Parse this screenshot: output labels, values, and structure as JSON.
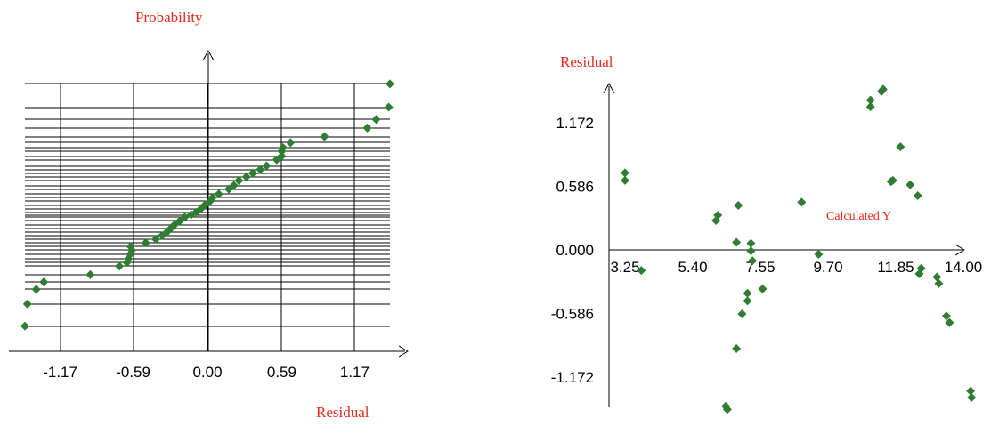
{
  "chart_data": [
    {
      "type": "scatter",
      "title": "",
      "xlabel": "Residual",
      "ylabel": "Probability",
      "x_ticks": [
        "-1.17",
        "-0.59",
        "0.00",
        "0.59",
        "1.17"
      ],
      "x_tick_values": [
        -1.17,
        -0.59,
        0.0,
        0.59,
        1.17
      ],
      "xlim": [
        -1.45,
        1.45
      ],
      "ylim": [
        0,
        1
      ],
      "grid": true,
      "marker_color": "#2e7d32",
      "points": [
        {
          "x": -1.45,
          "y": 0.005
        },
        {
          "x": -1.43,
          "y": 0.095
        },
        {
          "x": -1.36,
          "y": 0.155
        },
        {
          "x": -1.3,
          "y": 0.185
        },
        {
          "x": -0.93,
          "y": 0.215
        },
        {
          "x": -0.7,
          "y": 0.25
        },
        {
          "x": -0.64,
          "y": 0.265
        },
        {
          "x": -0.63,
          "y": 0.28
        },
        {
          "x": -0.61,
          "y": 0.3
        },
        {
          "x": -0.6,
          "y": 0.315
        },
        {
          "x": -0.61,
          "y": 0.33
        },
        {
          "x": -0.49,
          "y": 0.345
        },
        {
          "x": -0.41,
          "y": 0.36
        },
        {
          "x": -0.36,
          "y": 0.375
        },
        {
          "x": -0.32,
          "y": 0.39
        },
        {
          "x": -0.29,
          "y": 0.405
        },
        {
          "x": -0.26,
          "y": 0.42
        },
        {
          "x": -0.22,
          "y": 0.435
        },
        {
          "x": -0.18,
          "y": 0.45
        },
        {
          "x": -0.13,
          "y": 0.46
        },
        {
          "x": -0.09,
          "y": 0.47
        },
        {
          "x": -0.05,
          "y": 0.485
        },
        {
          "x": -0.02,
          "y": 0.5
        },
        {
          "x": 0.02,
          "y": 0.515
        },
        {
          "x": 0.04,
          "y": 0.53
        },
        {
          "x": 0.09,
          "y": 0.545
        },
        {
          "x": 0.17,
          "y": 0.565
        },
        {
          "x": 0.21,
          "y": 0.58
        },
        {
          "x": 0.25,
          "y": 0.6
        },
        {
          "x": 0.31,
          "y": 0.615
        },
        {
          "x": 0.36,
          "y": 0.63
        },
        {
          "x": 0.42,
          "y": 0.645
        },
        {
          "x": 0.47,
          "y": 0.66
        },
        {
          "x": 0.55,
          "y": 0.685
        },
        {
          "x": 0.59,
          "y": 0.7
        },
        {
          "x": 0.59,
          "y": 0.72
        },
        {
          "x": 0.6,
          "y": 0.735
        },
        {
          "x": 0.66,
          "y": 0.755
        },
        {
          "x": 0.93,
          "y": 0.78
        },
        {
          "x": 1.27,
          "y": 0.815
        },
        {
          "x": 1.34,
          "y": 0.85
        },
        {
          "x": 1.44,
          "y": 0.9
        },
        {
          "x": 1.45,
          "y": 0.995
        }
      ]
    },
    {
      "type": "scatter",
      "title": "",
      "xlabel": "Calculated Y",
      "ylabel": "Residual",
      "x_ticks": [
        "3.25",
        "5.40",
        "7.55",
        "9.70",
        "11.85",
        "14.00"
      ],
      "x_tick_values": [
        3.25,
        5.4,
        7.55,
        9.7,
        11.85,
        14.0
      ],
      "y_ticks": [
        "1.172",
        "0.586",
        "0.000",
        "-0.586",
        "-1.172"
      ],
      "y_tick_values": [
        1.172,
        0.586,
        0.0,
        -0.586,
        -1.172
      ],
      "xlim": [
        2.73,
        14.0
      ],
      "ylim": [
        -1.45,
        1.5
      ],
      "grid": false,
      "marker_color": "#2e7d32",
      "points": [
        {
          "x": 3.25,
          "y": 0.71
        },
        {
          "x": 3.25,
          "y": 0.64
        },
        {
          "x": 3.77,
          "y": -0.19
        },
        {
          "x": 6.14,
          "y": 0.27
        },
        {
          "x": 6.2,
          "y": 0.32
        },
        {
          "x": 6.45,
          "y": -1.44
        },
        {
          "x": 6.5,
          "y": -1.47
        },
        {
          "x": 6.79,
          "y": 0.07
        },
        {
          "x": 6.85,
          "y": 0.41
        },
        {
          "x": 6.79,
          "y": -0.91
        },
        {
          "x": 6.97,
          "y": -0.59
        },
        {
          "x": 7.14,
          "y": -0.4
        },
        {
          "x": 7.14,
          "y": -0.47
        },
        {
          "x": 7.25,
          "y": 0.06
        },
        {
          "x": 7.25,
          "y": -0.01
        },
        {
          "x": 7.3,
          "y": -0.1
        },
        {
          "x": 7.62,
          "y": -0.36
        },
        {
          "x": 8.86,
          "y": 0.44
        },
        {
          "x": 9.4,
          "y": -0.04
        },
        {
          "x": 11.05,
          "y": 1.32
        },
        {
          "x": 11.05,
          "y": 1.38
        },
        {
          "x": 11.4,
          "y": 1.46
        },
        {
          "x": 11.45,
          "y": 1.48
        },
        {
          "x": 11.7,
          "y": 0.63
        },
        {
          "x": 11.76,
          "y": 0.64
        },
        {
          "x": 12.0,
          "y": 0.95
        },
        {
          "x": 12.31,
          "y": 0.6
        },
        {
          "x": 12.55,
          "y": 0.5
        },
        {
          "x": 12.6,
          "y": -0.22
        },
        {
          "x": 12.66,
          "y": -0.17
        },
        {
          "x": 13.16,
          "y": -0.25
        },
        {
          "x": 13.22,
          "y": -0.31
        },
        {
          "x": 13.46,
          "y": -0.61
        },
        {
          "x": 13.56,
          "y": -0.67
        },
        {
          "x": 14.23,
          "y": -1.3
        },
        {
          "x": 14.26,
          "y": -1.36
        }
      ]
    }
  ]
}
